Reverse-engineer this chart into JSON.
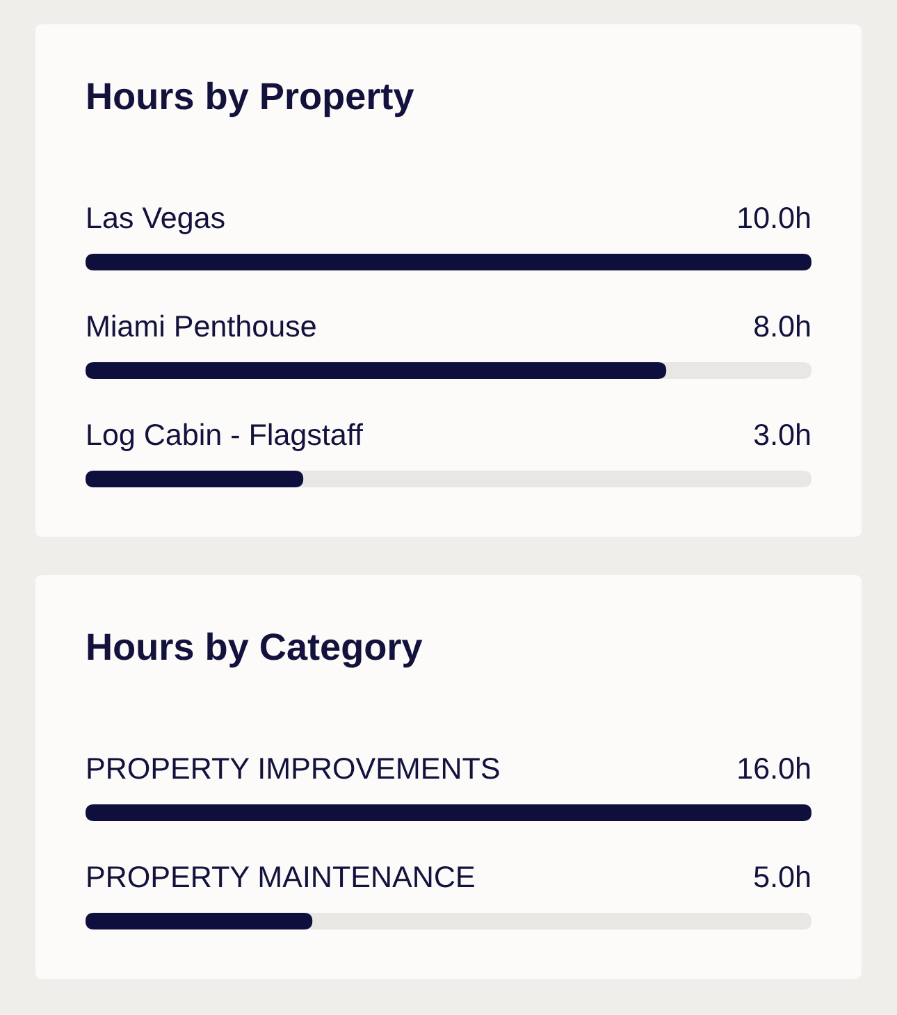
{
  "chart_data": [
    {
      "type": "bar",
      "orientation": "horizontal",
      "title": "Hours by Property",
      "categories": [
        "Las Vegas",
        "Miami Penthouse",
        "Log Cabin - Flagstaff"
      ],
      "values": [
        10,
        8,
        3
      ],
      "value_labels": [
        "10.0h",
        "8.0h",
        "3.0h"
      ],
      "color": "#0e0f3c",
      "xlim": [
        0,
        10
      ],
      "tick_labels": "y"
    },
    {
      "type": "bar",
      "orientation": "horizontal",
      "title": "Hours by Category",
      "categories": [
        "PROPERTY IMPROVEMENTS",
        "PROPERTY MAINTENANCE"
      ],
      "values": [
        16,
        5
      ],
      "value_labels": [
        "16.0h",
        "5.0h"
      ],
      "color": "#0e0f3c",
      "xlim": [
        0,
        16
      ],
      "tick_labels": "y"
    }
  ]
}
